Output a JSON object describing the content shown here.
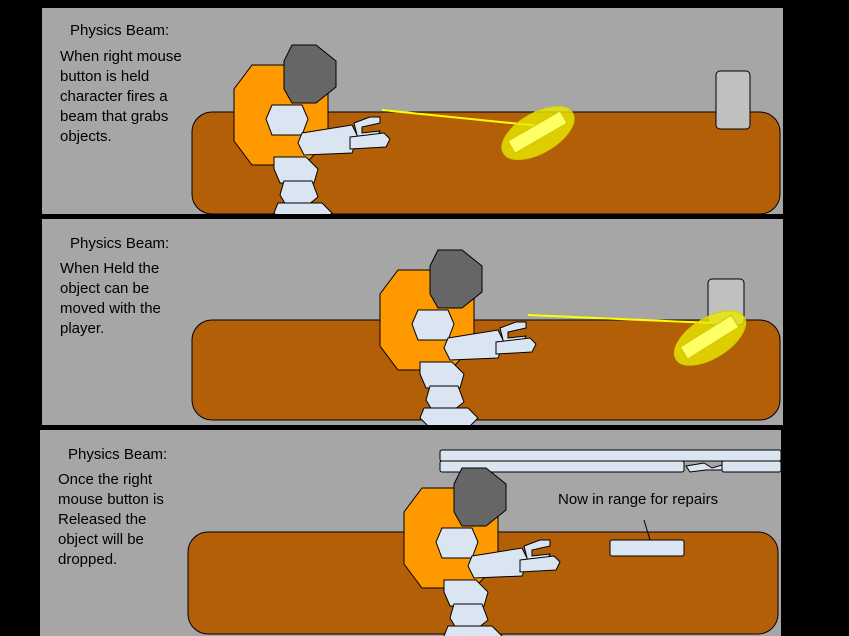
{
  "colors": {
    "background": "#000000",
    "panel": "#a6a6a6",
    "ground": "#b35f07",
    "character_body": "#ff9900",
    "helmet": "#666666",
    "armor": "#dbe5f1",
    "beam": "#ffff00",
    "grabbed_object_glow": "#e8e800",
    "pickup_object": "#c0c0c0"
  },
  "icons": {
    "character": "robot-character-icon",
    "beam": "physics-beam-icon",
    "object": "grabbed-object-icon"
  },
  "panels": [
    {
      "title": "Physics Beam:",
      "description_lines": [
        "When right mouse",
        "button is held",
        "character fires a",
        "beam that grabs",
        "objects."
      ]
    },
    {
      "title": "Physics Beam:",
      "description_lines": [
        "When Held the",
        "object can be",
        "moved with the",
        "player."
      ]
    },
    {
      "title": "Physics Beam:",
      "description_lines": [
        "Once the right",
        "mouse button is",
        "Released the",
        "object will be",
        "dropped."
      ],
      "callout": "Now in range for repairs"
    }
  ]
}
